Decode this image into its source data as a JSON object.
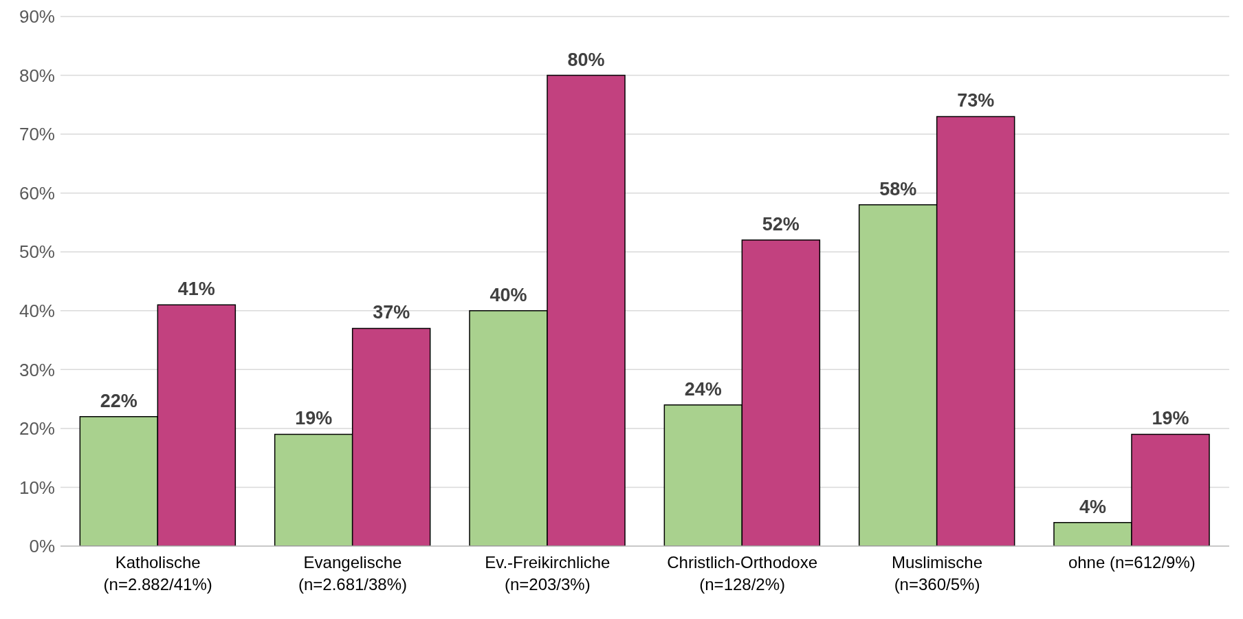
{
  "chart_data": {
    "type": "bar",
    "categories": [
      "Katholische\n(n=2.882/41%)",
      "Evangelische\n(n=2.681/38%)",
      "Ev.-Freikirchliche\n(n=203/3%)",
      "Christlich-Orthodoxe\n(n=128/2%)",
      "Muslimische\n(n=360/5%)",
      "ohne (n=612/9%)"
    ],
    "series": [
      {
        "color": "#a9d18e",
        "values": [
          22,
          19,
          40,
          24,
          58,
          4
        ],
        "value_labels": [
          "22%",
          "19%",
          "40%",
          "24%",
          "58%",
          "4%"
        ]
      },
      {
        "color": "#c2417f",
        "values": [
          41,
          37,
          80,
          52,
          73,
          19
        ],
        "value_labels": [
          "41%",
          "37%",
          "80%",
          "52%",
          "73%",
          "19%"
        ]
      }
    ],
    "ylim": [
      0,
      90
    ],
    "yticks": [
      {
        "value": 0,
        "label": "0%"
      },
      {
        "value": 10,
        "label": "10%"
      },
      {
        "value": 20,
        "label": "20%"
      },
      {
        "value": 30,
        "label": "30%"
      },
      {
        "value": 40,
        "label": "40%"
      },
      {
        "value": 50,
        "label": "50%"
      },
      {
        "value": 60,
        "label": "60%"
      },
      {
        "value": 70,
        "label": "70%"
      },
      {
        "value": 80,
        "label": "80%"
      },
      {
        "value": 90,
        "label": "90%"
      }
    ],
    "grid": "y",
    "legend": false
  }
}
